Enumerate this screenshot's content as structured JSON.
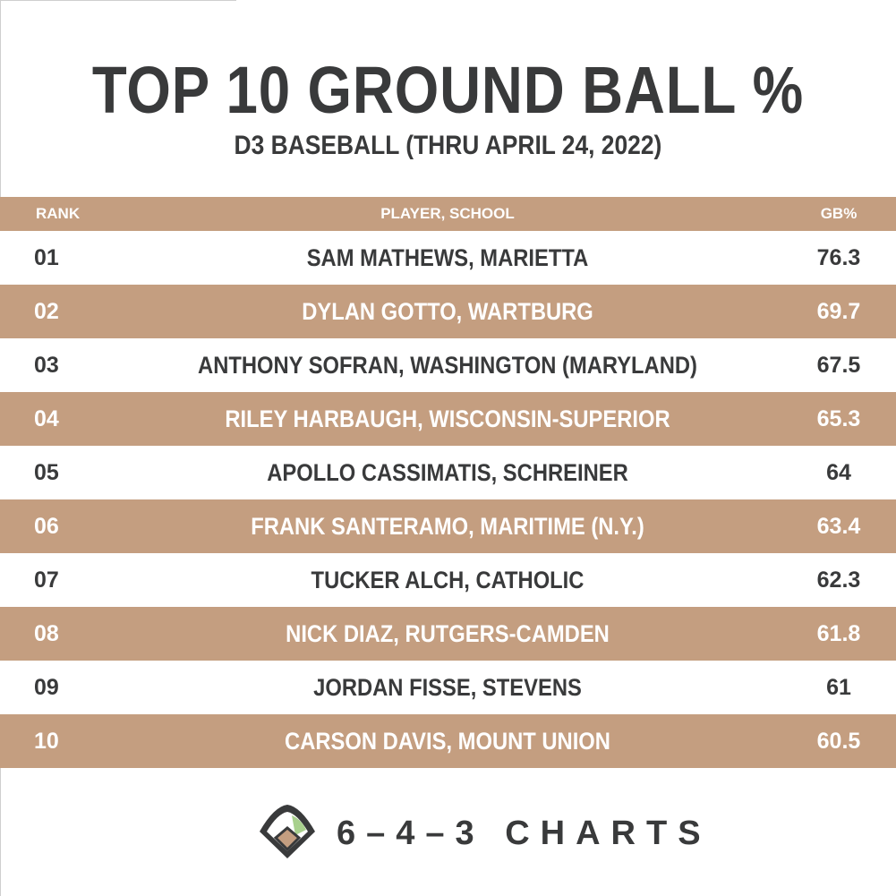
{
  "title": "TOP 10 GROUND BALL %",
  "subtitle": "D3 BASEBALL (THRU APRIL 24, 2022)",
  "colors": {
    "accent_tan": "#c49e80",
    "text_dark": "#393a3b",
    "logo_green": "#a8d08d"
  },
  "chart_data": {
    "type": "table",
    "columns": [
      "RANK",
      "PLAYER, SCHOOL",
      "GB%"
    ],
    "rows": [
      {
        "rank": "01",
        "player": "SAM MATHEWS, MARIETTA",
        "gb": "76.3"
      },
      {
        "rank": "02",
        "player": "DYLAN GOTTO, WARTBURG",
        "gb": "69.7"
      },
      {
        "rank": "03",
        "player": "ANTHONY SOFRAN, WASHINGTON (MARYLAND)",
        "gb": "67.5"
      },
      {
        "rank": "04",
        "player": "RILEY HARBAUGH, WISCONSIN-SUPERIOR",
        "gb": "65.3"
      },
      {
        "rank": "05",
        "player": "APOLLO CASSIMATIS, SCHREINER",
        "gb": "64"
      },
      {
        "rank": "06",
        "player": "FRANK SANTERAMO, MARITIME (N.Y.)",
        "gb": "63.4"
      },
      {
        "rank": "07",
        "player": "TUCKER ALCH, CATHOLIC",
        "gb": "62.3"
      },
      {
        "rank": "08",
        "player": "NICK DIAZ, RUTGERS-CAMDEN",
        "gb": "61.8"
      },
      {
        "rank": "09",
        "player": "JORDAN FISSE, STEVENS",
        "gb": "61"
      },
      {
        "rank": "10",
        "player": "CARSON DAVIS, MOUNT UNION",
        "gb": "60.5"
      }
    ]
  },
  "brand": {
    "name": "6–4–3 CHARTS",
    "logo_icon": "baseball-diamond-icon"
  }
}
